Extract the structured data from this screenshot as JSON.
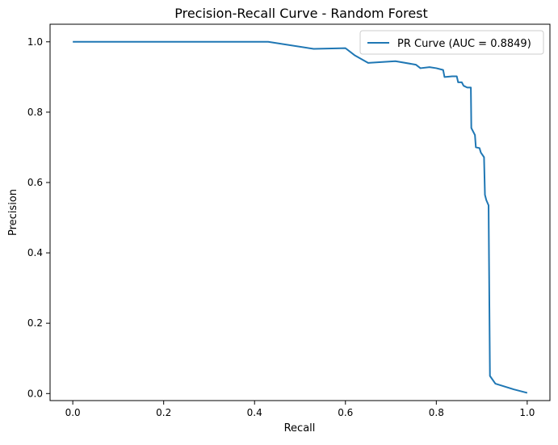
{
  "chart_data": {
    "type": "line",
    "title": "Precision-Recall Curve - Random Forest",
    "xlabel": "Recall",
    "ylabel": "Precision",
    "xlim": [
      -0.05,
      1.05
    ],
    "ylim": [
      -0.02,
      1.05
    ],
    "xticks": [
      0.0,
      0.2,
      0.4,
      0.6,
      0.8,
      1.0
    ],
    "yticks": [
      0.0,
      0.2,
      0.4,
      0.6,
      0.8,
      1.0
    ],
    "xtick_labels": [
      "0.0",
      "0.2",
      "0.4",
      "0.6",
      "0.8",
      "1.0"
    ],
    "ytick_labels": [
      "0.0",
      "0.2",
      "0.4",
      "0.6",
      "0.8",
      "1.0"
    ],
    "grid": false,
    "legend_position": "top-right",
    "series": [
      {
        "name": "PR Curve (AUC = 0.8849)",
        "color": "#1f77b4",
        "x": [
          0.0,
          0.43,
          0.53,
          0.6,
          0.62,
          0.65,
          0.71,
          0.755,
          0.765,
          0.785,
          0.8,
          0.815,
          0.818,
          0.835,
          0.845,
          0.848,
          0.856,
          0.86,
          0.868,
          0.876,
          0.877,
          0.885,
          0.887,
          0.895,
          0.898,
          0.905,
          0.907,
          0.91,
          0.915,
          0.918,
          0.93,
          0.97,
          1.0
        ],
        "y": [
          1.0,
          1.0,
          0.98,
          0.982,
          0.962,
          0.94,
          0.945,
          0.935,
          0.925,
          0.928,
          0.925,
          0.92,
          0.9,
          0.902,
          0.902,
          0.885,
          0.885,
          0.875,
          0.87,
          0.87,
          0.755,
          0.735,
          0.7,
          0.698,
          0.685,
          0.672,
          0.565,
          0.55,
          0.535,
          0.05,
          0.028,
          0.012,
          0.002
        ]
      }
    ]
  }
}
